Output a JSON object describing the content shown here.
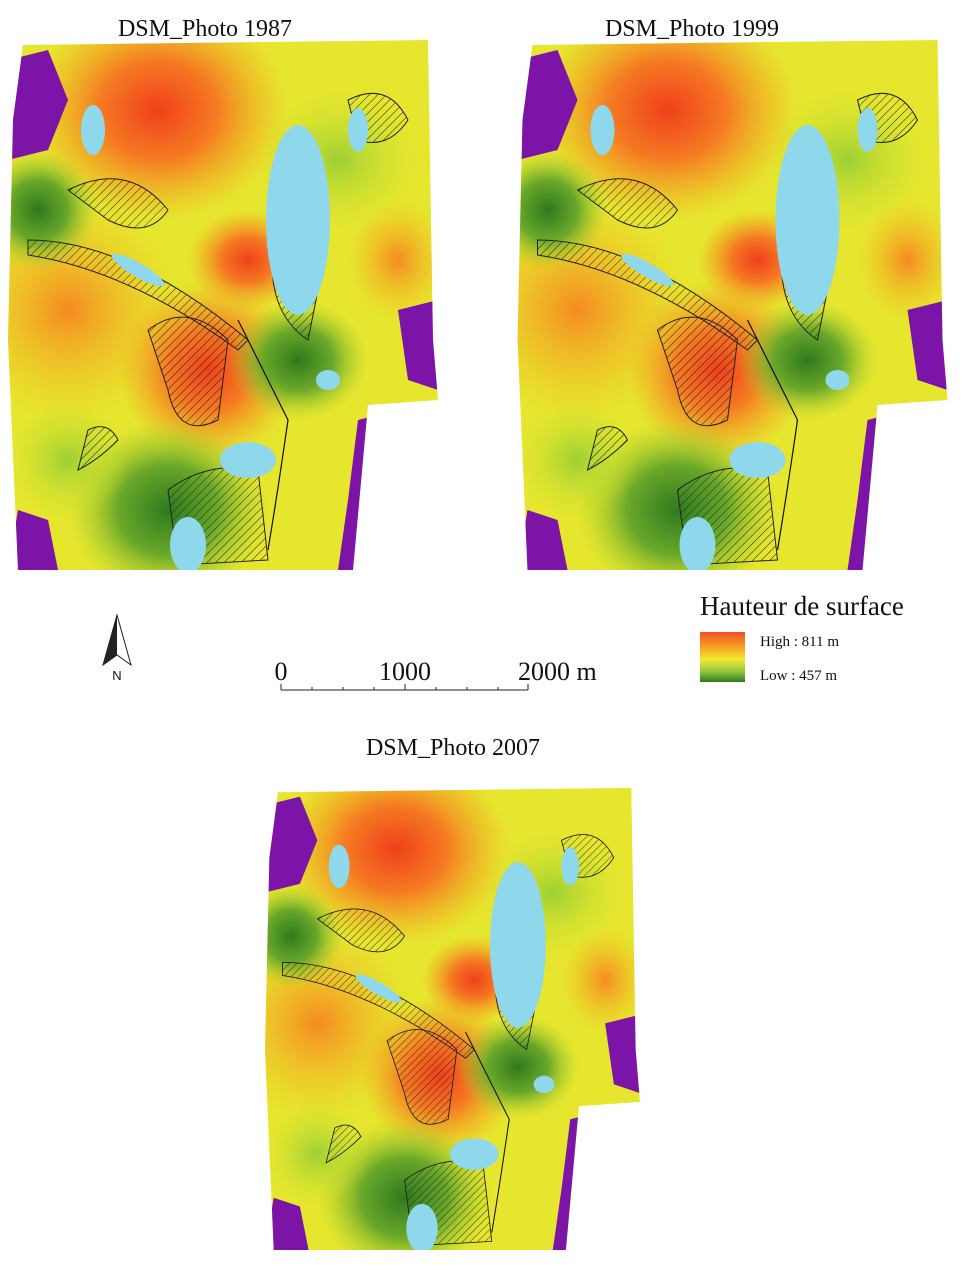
{
  "maps": [
    {
      "title": "DSM_Photo 1987"
    },
    {
      "title": "DSM_Photo 1999"
    },
    {
      "title": "DSM_Photo 2007"
    }
  ],
  "north_arrow": {
    "label": "N"
  },
  "scale_bar": {
    "labels": [
      "0",
      "1000",
      "2000 m"
    ]
  },
  "legend": {
    "title": "Hauteur de surface",
    "high": "High : 811 m",
    "low": "Low : 457 m"
  }
}
